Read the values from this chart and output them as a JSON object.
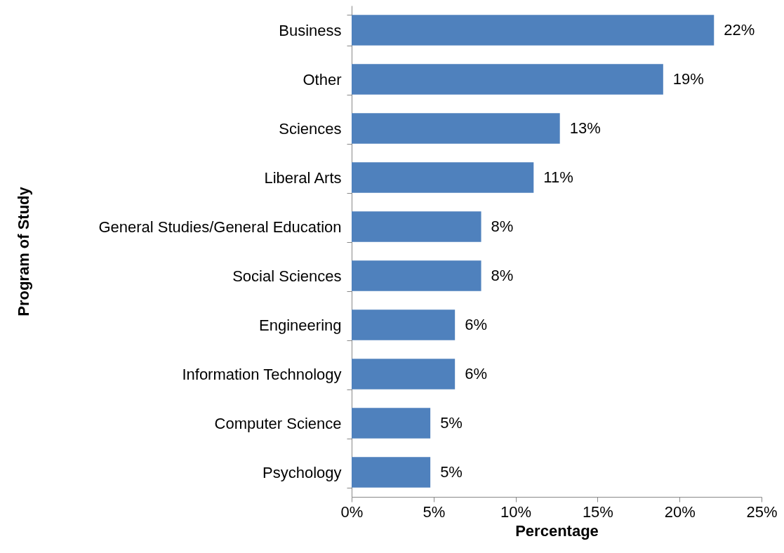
{
  "chart_data": {
    "type": "bar",
    "orientation": "horizontal",
    "xlabel": "Percentage",
    "ylabel": "Program of Study",
    "categories": [
      "Business",
      "Other",
      "Sciences",
      "Liberal Arts",
      "General Studies/General Education",
      "Social Sciences",
      "Engineering",
      "Information Technology",
      "Computer Science",
      "Psychology"
    ],
    "values": [
      22.1,
      19.0,
      12.7,
      11.1,
      7.9,
      7.9,
      6.3,
      6.3,
      4.8,
      4.8
    ],
    "value_labels": [
      "22%",
      "19%",
      "13%",
      "11%",
      "8%",
      "8%",
      "6%",
      "6%",
      "5%",
      "5%"
    ],
    "color": "#4f81bd",
    "xlim": [
      0,
      25
    ],
    "xticks": [
      {
        "value": 0,
        "label": "0%"
      },
      {
        "value": 5,
        "label": "5%"
      },
      {
        "value": 10,
        "label": "10%"
      },
      {
        "value": 15,
        "label": "15%"
      },
      {
        "value": 20,
        "label": "20%"
      },
      {
        "value": 25,
        "label": "25%"
      }
    ]
  }
}
